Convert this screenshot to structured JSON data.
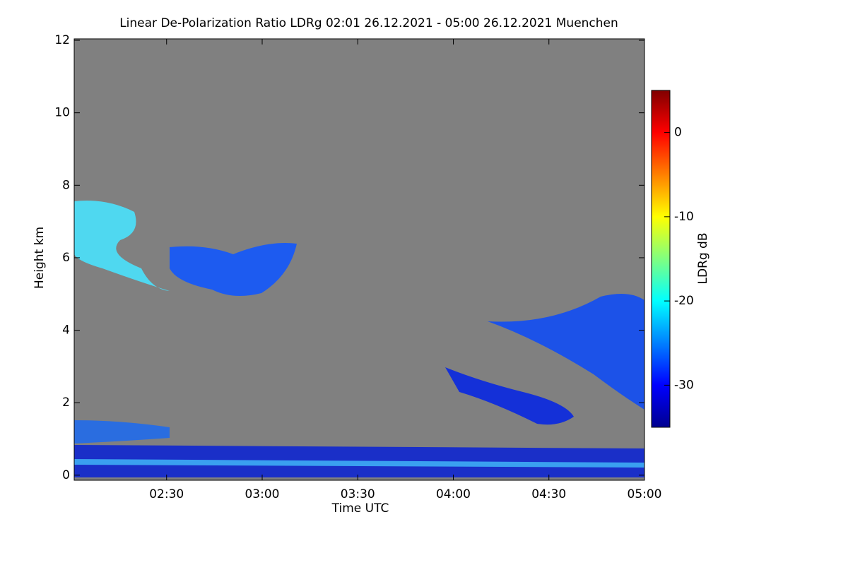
{
  "chart_data": {
    "type": "heatmap",
    "title": "Linear De-Polarization Ratio LDRg   02:01 26.12.2021 - 05:00 26.12.2021 Muenchen",
    "x_label": "Time UTC",
    "y_label": "Height km",
    "xlim": [
      2.0167,
      5.0
    ],
    "xticks": [
      {
        "value": 2.5,
        "label": "02:30"
      },
      {
        "value": 3.0,
        "label": "03:00"
      },
      {
        "value": 3.5,
        "label": "03:30"
      },
      {
        "value": 4.0,
        "label": "04:00"
      },
      {
        "value": 4.5,
        "label": "04:30"
      },
      {
        "value": 5.0,
        "label": "05:00"
      }
    ],
    "ylim": [
      -0.14,
      12.04
    ],
    "yticks": [
      0,
      2,
      4,
      6,
      8,
      10,
      12
    ],
    "background_color": "#808080",
    "colorbar": {
      "label": "LDRg dB",
      "clim": [
        -35,
        5
      ],
      "ticks": [
        0,
        -10,
        -20,
        -30
      ],
      "colormap": "jet"
    }
  }
}
